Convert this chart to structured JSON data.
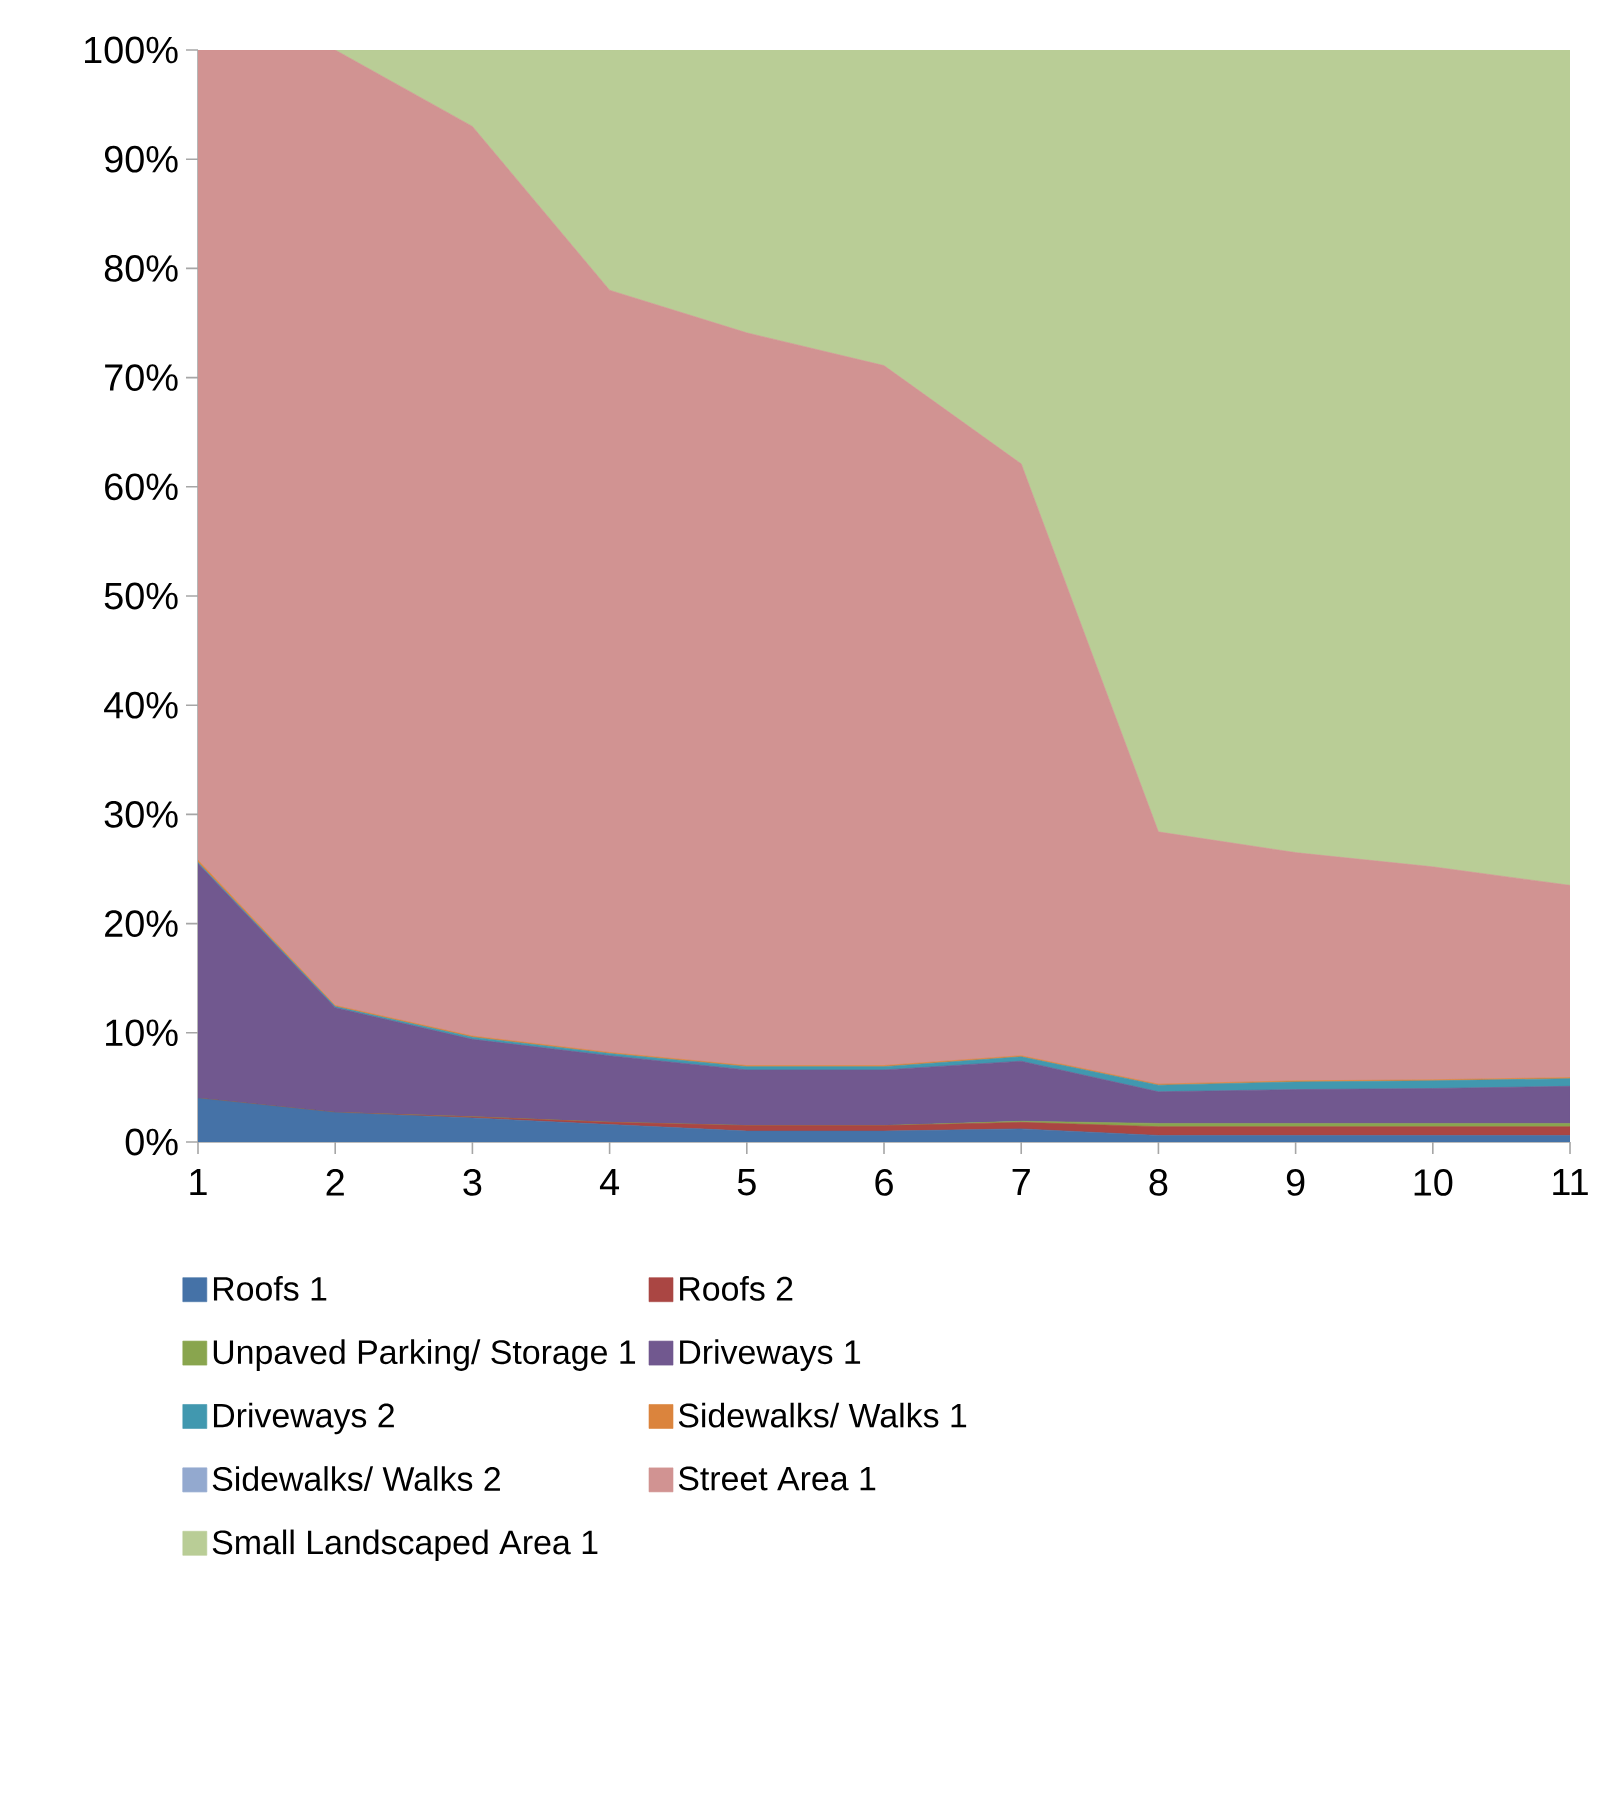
{
  "chart_data": {
    "type": "area",
    "stacked": true,
    "legend": "bottom",
    "x": [
      1,
      2,
      3,
      4,
      5,
      6,
      7,
      8,
      9,
      10,
      11
    ],
    "xlim": [
      1,
      11
    ],
    "xticks": [
      1,
      2,
      3,
      4,
      5,
      6,
      7,
      8,
      9,
      10,
      11
    ],
    "ylim": [
      0,
      100
    ],
    "yticks": [
      {
        "value": 0,
        "label": "0%"
      },
      {
        "value": 10,
        "label": "10%"
      },
      {
        "value": 20,
        "label": "20%"
      },
      {
        "value": 30,
        "label": "30%"
      },
      {
        "value": 40,
        "label": "40%"
      },
      {
        "value": 50,
        "label": "50%"
      },
      {
        "value": 60,
        "label": "60%"
      },
      {
        "value": 70,
        "label": "70%"
      },
      {
        "value": 80,
        "label": "80%"
      },
      {
        "value": 90,
        "label": "90%"
      },
      {
        "value": 100,
        "label": "100%"
      }
    ],
    "series": [
      {
        "name": "Roofs 1",
        "color": "#4572a7",
        "values": [
          4.0,
          2.7,
          2.2,
          1.6,
          1.0,
          1.0,
          1.2,
          0.6,
          0.6,
          0.6,
          0.6
        ]
      },
      {
        "name": "Roofs 2",
        "color": "#aa4643",
        "values": [
          0,
          0,
          0.1,
          0.2,
          0.5,
          0.5,
          0.6,
          0.8,
          0.8,
          0.8,
          0.8
        ]
      },
      {
        "name": "Unpaved Parking/ Storage 1",
        "color": "#89a54e",
        "values": [
          0,
          0,
          0,
          0,
          0,
          0,
          0.1,
          0.3,
          0.3,
          0.3,
          0.3
        ]
      },
      {
        "name": "Driveways 1",
        "color": "#71588f",
        "values": [
          21.5,
          9.6,
          7.1,
          6.1,
          5.1,
          5.1,
          5.5,
          2.9,
          3.1,
          3.2,
          3.4
        ]
      },
      {
        "name": "Driveways 2",
        "color": "#4198af",
        "values": [
          0.1,
          0.1,
          0.2,
          0.2,
          0.3,
          0.3,
          0.4,
          0.6,
          0.7,
          0.7,
          0.7
        ]
      },
      {
        "name": "Sidewalks/ Walks 1",
        "color": "#db843d",
        "values": [
          0.2,
          0.1,
          0.1,
          0.1,
          0.1,
          0.1,
          0.1,
          0.1,
          0.1,
          0.1,
          0.1
        ]
      },
      {
        "name": "Sidewalks/ Walks 2",
        "color": "#93a9cf",
        "values": [
          null,
          null,
          null,
          null,
          null,
          null,
          null,
          null,
          null,
          null,
          null
        ]
      },
      {
        "name": "Street Area 1",
        "color": "#d19392",
        "values": [
          74.2,
          87.5,
          83.3,
          69.8,
          67.1,
          64.1,
          54.2,
          23.1,
          20.9,
          19.5,
          17.6
        ]
      },
      {
        "name": "Small Landscaped Area 1",
        "color": "#b9cd96",
        "values": [
          0,
          0,
          7,
          22,
          26,
          29,
          38,
          71.7,
          73.6,
          74.9,
          76.6
        ]
      }
    ]
  }
}
